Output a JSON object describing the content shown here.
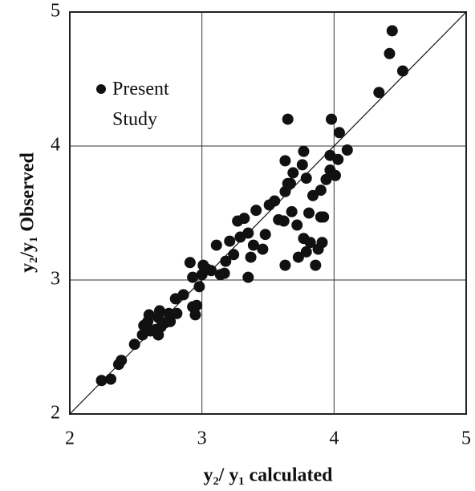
{
  "chart_data": {
    "type": "scatter",
    "xlabel": "y₂/ y₁ calculated",
    "ylabel": "y₂/y₁ Observed",
    "xlim": [
      2,
      5
    ],
    "ylim": [
      2,
      5
    ],
    "xticks": [
      2,
      3,
      4,
      5
    ],
    "yticks": [
      2,
      3,
      4,
      5
    ],
    "grid": true,
    "series": [
      {
        "name": "Present Study",
        "color": "#111111",
        "x": [
          2.24,
          2.31,
          2.37,
          2.39,
          2.49,
          2.55,
          2.56,
          2.59,
          2.6,
          2.61,
          2.65,
          2.67,
          2.69,
          2.72,
          2.76,
          2.67,
          2.68,
          2.75,
          2.81,
          2.8,
          2.86,
          2.93,
          2.95,
          2.96,
          2.91,
          2.93,
          2.98,
          3.0,
          3.01,
          3.04,
          3.07,
          3.11,
          3.14,
          3.17,
          3.18,
          3.21,
          3.24,
          3.27,
          3.29,
          3.32,
          3.35,
          3.37,
          3.39,
          3.41,
          3.46,
          3.35,
          3.48,
          3.51,
          3.55,
          3.58,
          3.63,
          3.63,
          3.65,
          3.67,
          3.69,
          3.68,
          3.63,
          3.73,
          3.77,
          3.79,
          3.79,
          3.81,
          3.84,
          3.86,
          3.82,
          3.88,
          3.9,
          3.91,
          3.92,
          3.94,
          3.97,
          3.97,
          3.76,
          3.77,
          3.65,
          3.9,
          3.62,
          3.72,
          3.98,
          4.04,
          4.01,
          4.03,
          4.1,
          4.34,
          4.42,
          4.44,
          4.52
        ],
        "values": [
          2.25,
          2.26,
          2.37,
          2.4,
          2.52,
          2.59,
          2.66,
          2.69,
          2.74,
          2.62,
          2.63,
          2.72,
          2.65,
          2.68,
          2.69,
          2.59,
          2.77,
          2.75,
          2.75,
          2.86,
          2.89,
          2.8,
          2.74,
          2.81,
          3.13,
          3.02,
          2.95,
          3.04,
          3.11,
          3.08,
          3.07,
          3.26,
          3.04,
          3.05,
          3.14,
          3.29,
          3.19,
          3.44,
          3.32,
          3.46,
          3.35,
          3.17,
          3.26,
          3.52,
          3.23,
          3.02,
          3.34,
          3.56,
          3.59,
          3.45,
          3.66,
          3.89,
          3.72,
          3.72,
          3.8,
          3.51,
          3.11,
          3.17,
          3.31,
          3.21,
          3.76,
          3.5,
          3.63,
          3.11,
          3.28,
          3.23,
          3.47,
          3.28,
          3.47,
          3.75,
          3.82,
          3.93,
          3.86,
          3.96,
          4.2,
          3.67,
          3.44,
          3.41,
          4.2,
          4.1,
          3.78,
          3.9,
          3.97,
          4.4,
          4.69,
          4.86,
          4.56
        ]
      }
    ]
  }
}
